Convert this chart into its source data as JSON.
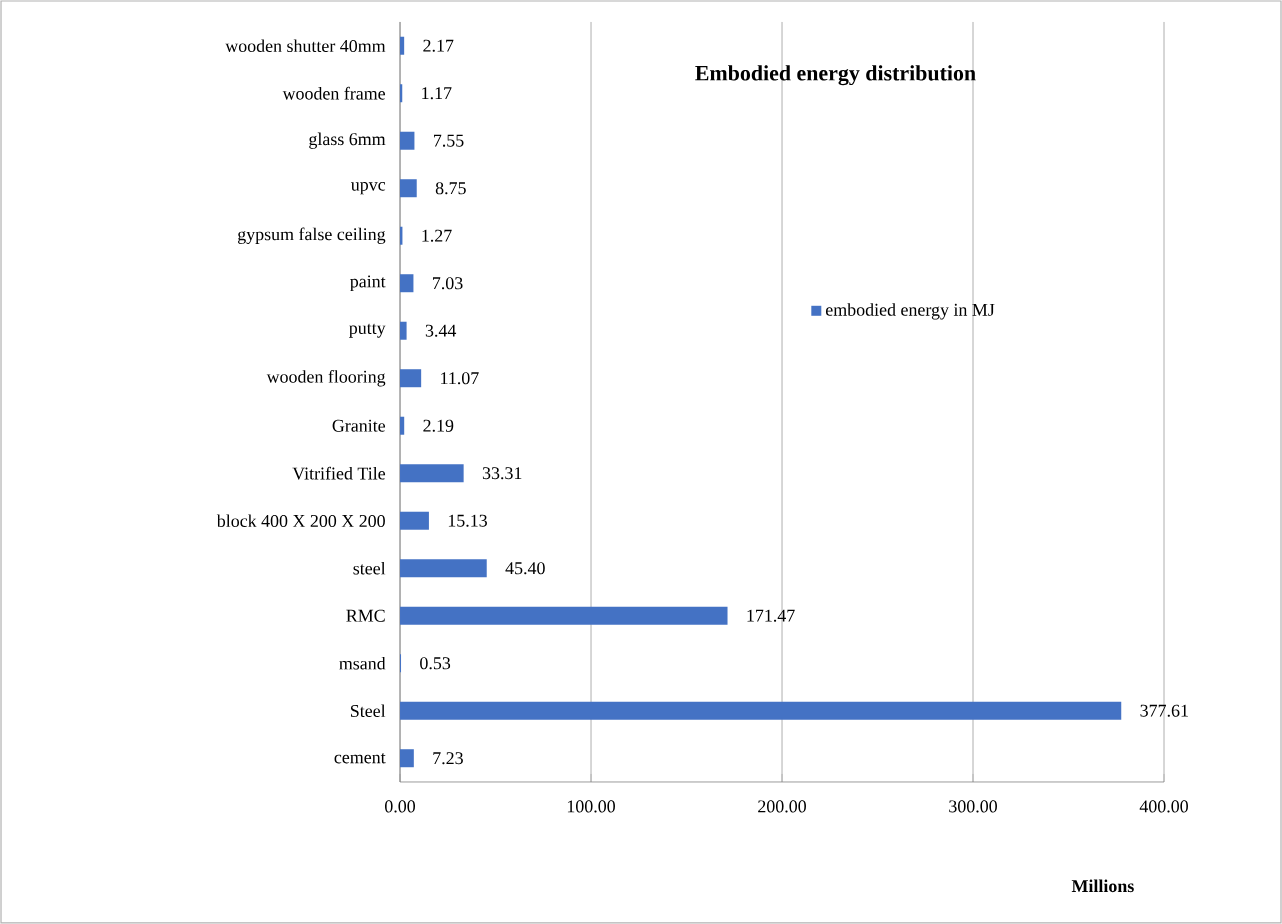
{
  "chart_data": {
    "type": "bar",
    "orientation": "horizontal",
    "title": "Embodied energy distribution",
    "xlabel": "Millions",
    "categories": [
      "wooden shutter 40mm",
      "wooden frame",
      "glass 6mm",
      "upvc",
      "gypsum false ceiling",
      "paint",
      "putty",
      "wooden flooring",
      "Granite",
      "Vitrified Tile",
      "block 400 X 200 X 200",
      "steel",
      "RMC",
      "msand",
      "Steel",
      "cement"
    ],
    "series": [
      {
        "name": "embodied energy in MJ",
        "color": "#4472c4",
        "values": [
          2.17,
          1.17,
          7.55,
          8.75,
          1.27,
          7.03,
          3.44,
          11.07,
          2.19,
          33.31,
          15.13,
          45.4,
          171.47,
          0.53,
          377.61,
          7.23
        ],
        "value_labels": [
          "2.17",
          "1.17",
          "7.55",
          "8.75",
          "1.27",
          "7.03",
          "3.44",
          "11.07",
          "2.19",
          "33.31",
          "15.13",
          "45.40",
          "171.47",
          "0.53",
          "377.61",
          "7.23"
        ]
      }
    ],
    "xlim": [
      0,
      400
    ],
    "xticks": [
      {
        "value": 0,
        "label": "0.00"
      },
      {
        "value": 100,
        "label": "100.00"
      },
      {
        "value": 200,
        "label": "200.00"
      },
      {
        "value": 300,
        "label": "300.00"
      },
      {
        "value": 400,
        "label": "400.00"
      }
    ],
    "grid": "x",
    "legend": "right"
  }
}
